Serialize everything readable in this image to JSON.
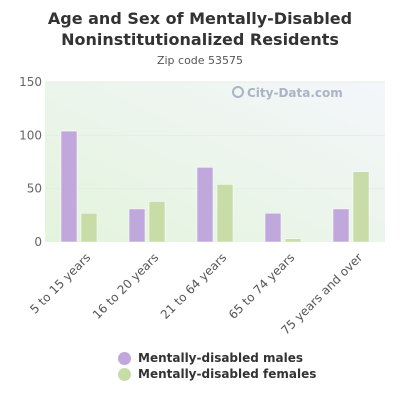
{
  "chart_data": {
    "type": "bar",
    "title": "Age and Sex of Mentally-Disabled Noninstitutionalized Residents",
    "subtitle": "Zip code 53575",
    "categories": [
      "5 to 15 years",
      "16 to 20 years",
      "21 to 64 years",
      "65 to 74 years",
      "75 years and over"
    ],
    "series": [
      {
        "name": "Mentally-disabled males",
        "color": "#c0a8dc",
        "values": [
          104,
          31,
          70,
          27,
          31
        ]
      },
      {
        "name": "Mentally-disabled females",
        "color": "#c8dca8",
        "values": [
          27,
          38,
          54,
          3,
          66
        ]
      }
    ],
    "yticks": [
      0,
      50,
      100,
      150
    ],
    "ylim": [
      0,
      150
    ],
    "grid": true,
    "legend_position": "bottom"
  },
  "watermark": {
    "text": "City-Data.com",
    "icon": "search-icon"
  }
}
